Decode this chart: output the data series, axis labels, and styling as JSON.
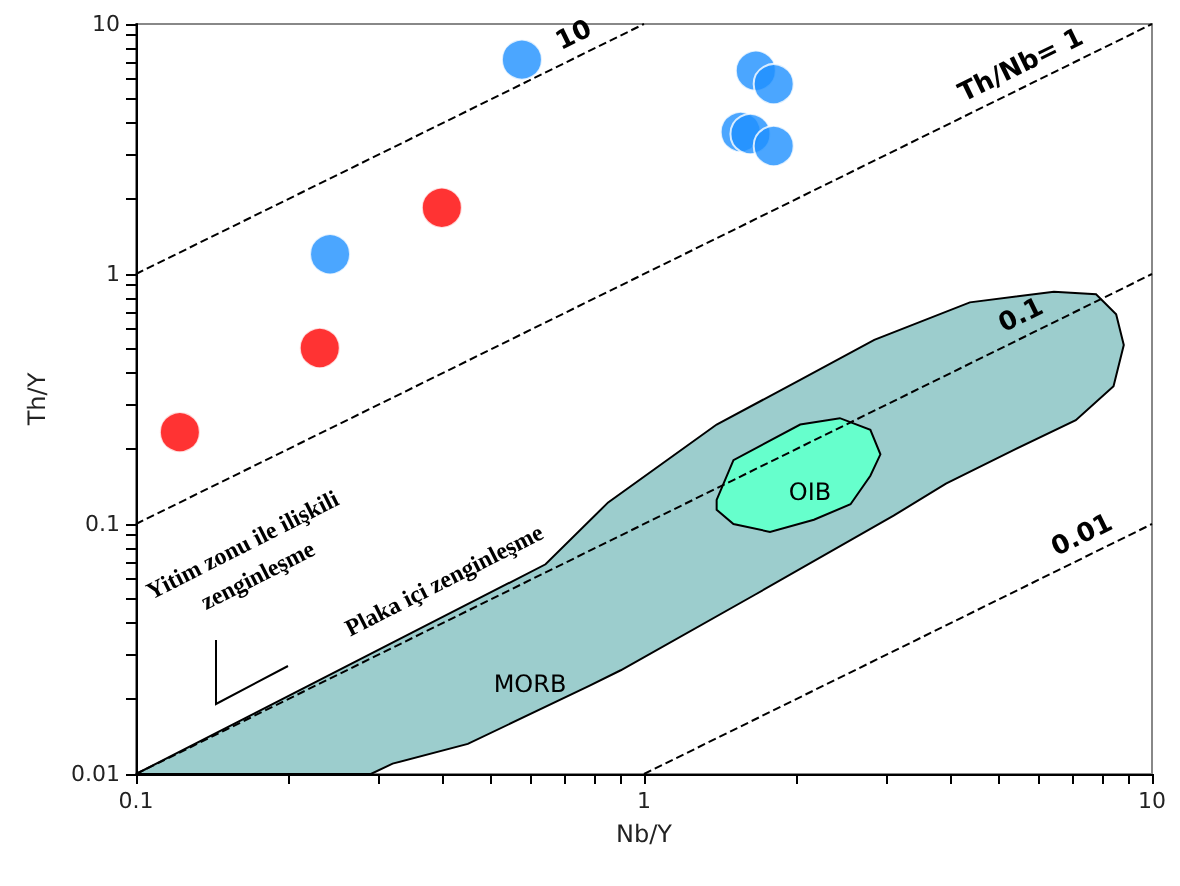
{
  "chart_data": {
    "type": "scatter",
    "xlabel": "Nb/Y",
    "ylabel": "Th/Y",
    "log": "xy",
    "grid": false,
    "legend": false,
    "xlim": [
      0.1,
      10
    ],
    "ylim": [
      0.01,
      10
    ],
    "xticks": [
      0.1,
      {
        "value": 0.2,
        "label": null
      },
      {
        "value": 0.3,
        "label": null
      },
      {
        "value": 0.4,
        "label": null
      },
      {
        "value": 0.5,
        "label": null
      },
      {
        "value": 0.6,
        "label": null
      },
      {
        "value": 0.7,
        "label": null
      },
      {
        "value": 0.8,
        "label": null
      },
      {
        "value": 0.9,
        "label": null
      },
      1,
      {
        "value": 2,
        "label": null
      },
      {
        "value": 3,
        "label": null
      },
      {
        "value": 4,
        "label": null
      },
      {
        "value": 5,
        "label": null
      },
      {
        "value": 6,
        "label": null
      },
      {
        "value": 7,
        "label": null
      },
      {
        "value": 8,
        "label": null
      },
      {
        "value": 9,
        "label": null
      },
      10
    ],
    "yticks": [
      0.01,
      {
        "value": 0.02,
        "label": null
      },
      {
        "value": 0.03,
        "label": null
      },
      {
        "value": 0.04,
        "label": null
      },
      {
        "value": 0.05,
        "label": null
      },
      {
        "value": 0.06,
        "label": null
      },
      {
        "value": 0.07,
        "label": null
      },
      {
        "value": 0.08,
        "label": null
      },
      {
        "value": 0.09,
        "label": null
      },
      0.1,
      {
        "value": 0.2,
        "label": null
      },
      {
        "value": 0.3,
        "label": null
      },
      {
        "value": 0.4,
        "label": null
      },
      {
        "value": 0.5,
        "label": null
      },
      {
        "value": 0.6,
        "label": null
      },
      {
        "value": 0.7,
        "label": null
      },
      {
        "value": 0.8,
        "label": null
      },
      {
        "value": 0.9,
        "label": null
      },
      1,
      {
        "value": 2,
        "label": null
      },
      {
        "value": 3,
        "label": null
      },
      {
        "value": 4,
        "label": null
      },
      {
        "value": 5,
        "label": null
      },
      {
        "value": 6,
        "label": null
      },
      {
        "value": 7,
        "label": null
      },
      {
        "value": 8,
        "label": null
      },
      {
        "value": 9,
        "label": null
      },
      10
    ],
    "series": [
      {
        "type": "area",
        "color": "#9ccdcd",
        "x": [
          0.1,
          0.64,
          0.85,
          1.39,
          2.03,
          2.84,
          4.38,
          6.41,
          7.76,
          8.5,
          8.8,
          8.4,
          7.08,
          5.35,
          3.93,
          3.1,
          1.65,
          0.9,
          0.78,
          0.45,
          0.32,
          0.29
        ],
        "values": [
          0.01,
          0.069,
          0.122,
          0.25,
          0.377,
          0.545,
          0.77,
          0.85,
          0.83,
          0.69,
          0.52,
          0.356,
          0.26,
          0.198,
          0.145,
          0.108,
          0.052,
          0.026,
          0.0225,
          0.0132,
          0.011,
          0.01
        ]
      },
      {
        "type": "area",
        "color": "#66ffcc",
        "x": [
          1.39,
          1.5,
          2.03,
          2.43,
          2.79,
          2.92,
          2.79,
          2.55,
          2.16,
          1.77,
          1.5,
          1.39
        ],
        "values": [
          0.125,
          0.18,
          0.25,
          0.265,
          0.238,
          0.19,
          0.156,
          0.12,
          0.104,
          0.093,
          0.1,
          0.114
        ]
      },
      {
        "type": "line",
        "name": "10",
        "color": "#000000",
        "line_style": "dashed",
        "marker": "none",
        "x": [
          0.1,
          1
        ],
        "values": [
          1,
          10
        ]
      },
      {
        "type": "line",
        "name": "Th/Nb= 1",
        "color": "#000000",
        "line_style": "dashed",
        "marker": "none",
        "x": [
          0.1,
          10
        ],
        "values": [
          0.1,
          10
        ]
      },
      {
        "type": "line",
        "name": "0.1",
        "color": "#000000",
        "line_style": "dashed",
        "marker": "none",
        "x": [
          0.1,
          10
        ],
        "values": [
          0.01,
          1
        ]
      },
      {
        "type": "line",
        "name": "0.01",
        "color": "#000000",
        "line_style": "dashed",
        "marker": "none",
        "x": [
          1,
          10
        ],
        "values": [
          0.01,
          0.1
        ]
      },
      {
        "color": "#ff0000",
        "marker": "circle",
        "x": [
          0.122,
          0.23,
          0.4
        ],
        "values": [
          0.233,
          0.506,
          1.84
        ]
      },
      {
        "color": "#1e90ff",
        "marker": "circle",
        "x": [
          0.241,
          0.575,
          1.66,
          1.8,
          1.55,
          1.62,
          1.8
        ],
        "values": [
          1.2,
          7.2,
          6.5,
          5.75,
          3.7,
          3.63,
          3.25
        ]
      }
    ],
    "annotations": [
      "MORB",
      "OIB",
      "Yitim zonu ile ilişkili\nzenginleşme",
      "Plaka içi zenginleşme"
    ]
  }
}
